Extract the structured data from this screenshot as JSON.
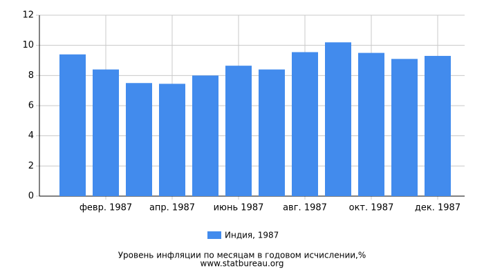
{
  "chart_data": {
    "type": "bar",
    "title": "Уровень инфляции по месяцам в годовом исчислении,%",
    "subtitle": "www.statbureau.org",
    "categories": [
      null,
      "февр. 1987",
      null,
      "апр. 1987",
      null,
      "июнь 1987",
      null,
      "авг. 1987",
      null,
      "окт. 1987",
      null,
      "дек. 1987"
    ],
    "series": [
      {
        "name": "Индия, 1987",
        "color": "#428bed",
        "values": [
          9.4,
          8.4,
          7.5,
          7.45,
          8.0,
          8.65,
          8.4,
          9.55,
          10.2,
          9.5,
          9.1,
          9.3
        ]
      }
    ],
    "ylim": [
      0,
      12
    ],
    "yticks": [
      0,
      2,
      4,
      6,
      8,
      10,
      12
    ],
    "grid": true,
    "legend": "bottom"
  }
}
